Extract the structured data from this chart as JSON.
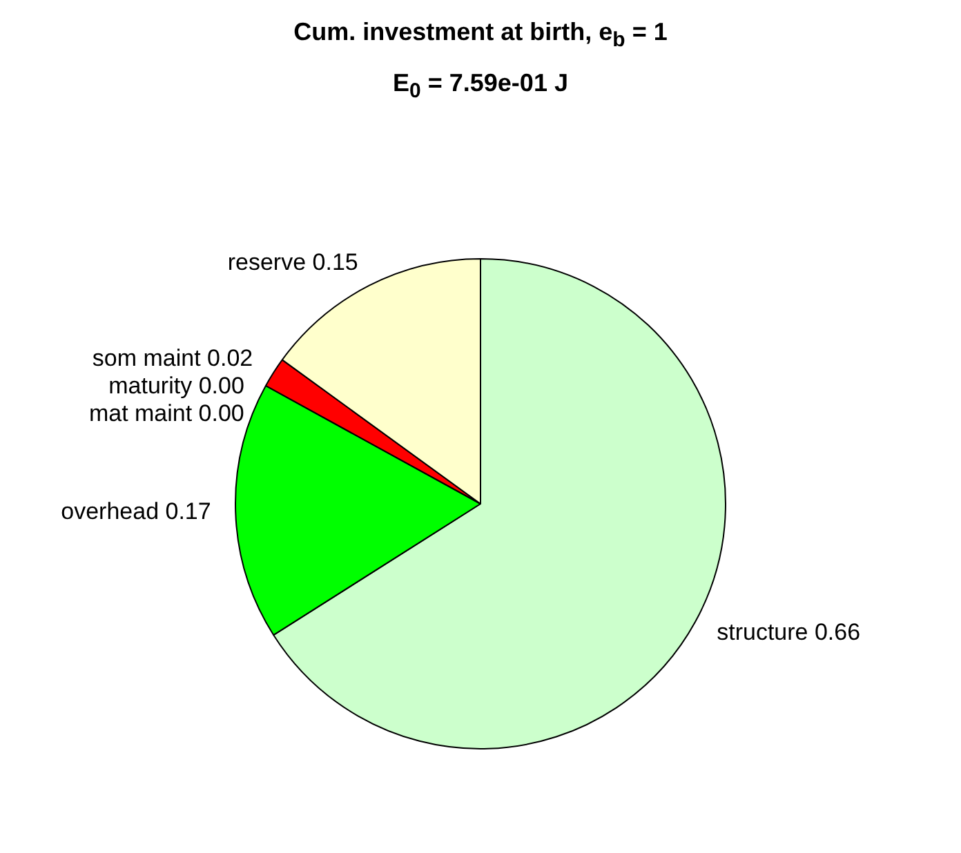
{
  "chart_data": {
    "type": "pie",
    "title": "Cum. investment at birth, e$_{b}$ = 1",
    "subtitle": "E$_{0}$ = 7.59e-01 J",
    "categories": [
      "structure",
      "overhead",
      "maturity",
      "mat maint",
      "som maint",
      "reserve"
    ],
    "values": [
      0.66,
      0.17,
      0.0,
      0.0,
      0.02,
      0.15
    ],
    "value_labels": [
      "0.66",
      "0.17",
      "0.00",
      "0.00",
      "0.02",
      "0.15"
    ],
    "colors": [
      "#ccffcc",
      "#00ff00",
      "#00008b",
      "#0000ff",
      "#ff0000",
      "#ffffcc"
    ],
    "legend": false
  }
}
